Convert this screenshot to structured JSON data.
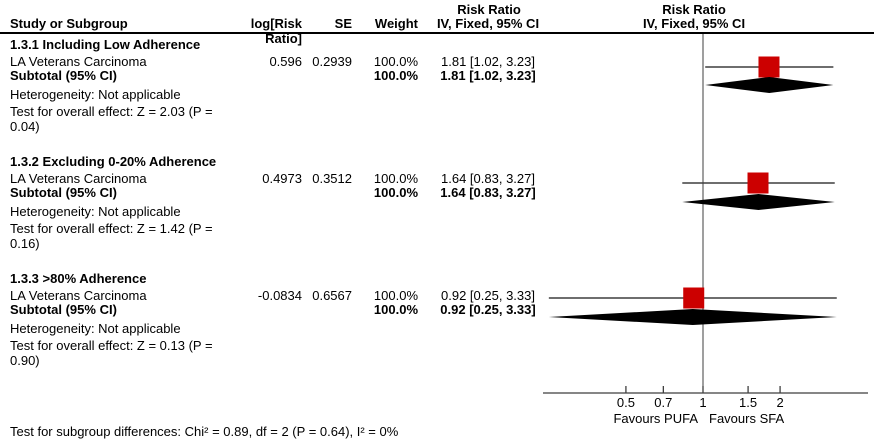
{
  "header": {
    "col_study": "Study or Subgroup",
    "col_logrr": "log[Risk Ratio]",
    "col_se": "SE",
    "col_weight": "Weight",
    "effect_title": "Risk Ratio",
    "effect_subtitle": "IV, Fixed, 95% CI",
    "plot_title": "Risk Ratio",
    "plot_subtitle": "IV, Fixed, 95% CI"
  },
  "axis": {
    "ticks": [
      0.5,
      0.7,
      1,
      1.5,
      2
    ],
    "favours_left": "Favours PUFA",
    "favours_right": "Favours SFA"
  },
  "footer": {
    "subgroup_diff": "Test for subgroup differences: Chi² = 0.89, df = 2 (P = 0.64), I² = 0%"
  },
  "colors": {
    "effect_square": "#cc0000",
    "diamond": "#000000",
    "line": "#3f3f3f",
    "separator": "#000000"
  },
  "chart_data": {
    "type": "forest",
    "scale": "log",
    "axis_ticks": [
      0.5,
      0.7,
      1,
      1.5,
      2
    ],
    "subgroups": [
      {
        "title": "1.3.1 Including Low Adherence",
        "studies": [
          {
            "name": "LA Veterans Carcinoma",
            "log_rr": "0.596",
            "se": "0.2939",
            "weight": "100.0%",
            "ci_text": "1.81 [1.02, 3.23]",
            "rr": 1.81,
            "ci_low": 1.02,
            "ci_high": 3.23
          }
        ],
        "subtotal": {
          "label": "Subtotal (95% CI)",
          "weight": "100.0%",
          "ci_text": "1.81 [1.02, 3.23]",
          "rr": 1.81,
          "ci_low": 1.02,
          "ci_high": 3.23
        },
        "heterogeneity": "Heterogeneity: Not applicable",
        "overall_effect": "Test for overall effect: Z = 2.03 (P = 0.04)"
      },
      {
        "title": "1.3.2 Excluding 0-20% Adherence",
        "studies": [
          {
            "name": "LA Veterans Carcinoma",
            "log_rr": "0.4973",
            "se": "0.3512",
            "weight": "100.0%",
            "ci_text": "1.64 [0.83, 3.27]",
            "rr": 1.64,
            "ci_low": 0.83,
            "ci_high": 3.27
          }
        ],
        "subtotal": {
          "label": "Subtotal (95% CI)",
          "weight": "100.0%",
          "ci_text": "1.64 [0.83, 3.27]",
          "rr": 1.64,
          "ci_low": 0.83,
          "ci_high": 3.27
        },
        "heterogeneity": "Heterogeneity: Not applicable",
        "overall_effect": "Test for overall effect: Z = 1.42 (P = 0.16)"
      },
      {
        "title": "1.3.3 >80% Adherence",
        "studies": [
          {
            "name": "LA Veterans Carcinoma",
            "log_rr": "-0.0834",
            "se": "0.6567",
            "weight": "100.0%",
            "ci_text": "0.92 [0.25, 3.33]",
            "rr": 0.92,
            "ci_low": 0.25,
            "ci_high": 3.33
          }
        ],
        "subtotal": {
          "label": "Subtotal (95% CI)",
          "weight": "100.0%",
          "ci_text": "0.92 [0.25, 3.33]",
          "rr": 0.92,
          "ci_low": 0.25,
          "ci_high": 3.33
        },
        "heterogeneity": "Heterogeneity: Not applicable",
        "overall_effect": "Test for overall effect: Z = 0.13 (P = 0.90)"
      }
    ]
  }
}
